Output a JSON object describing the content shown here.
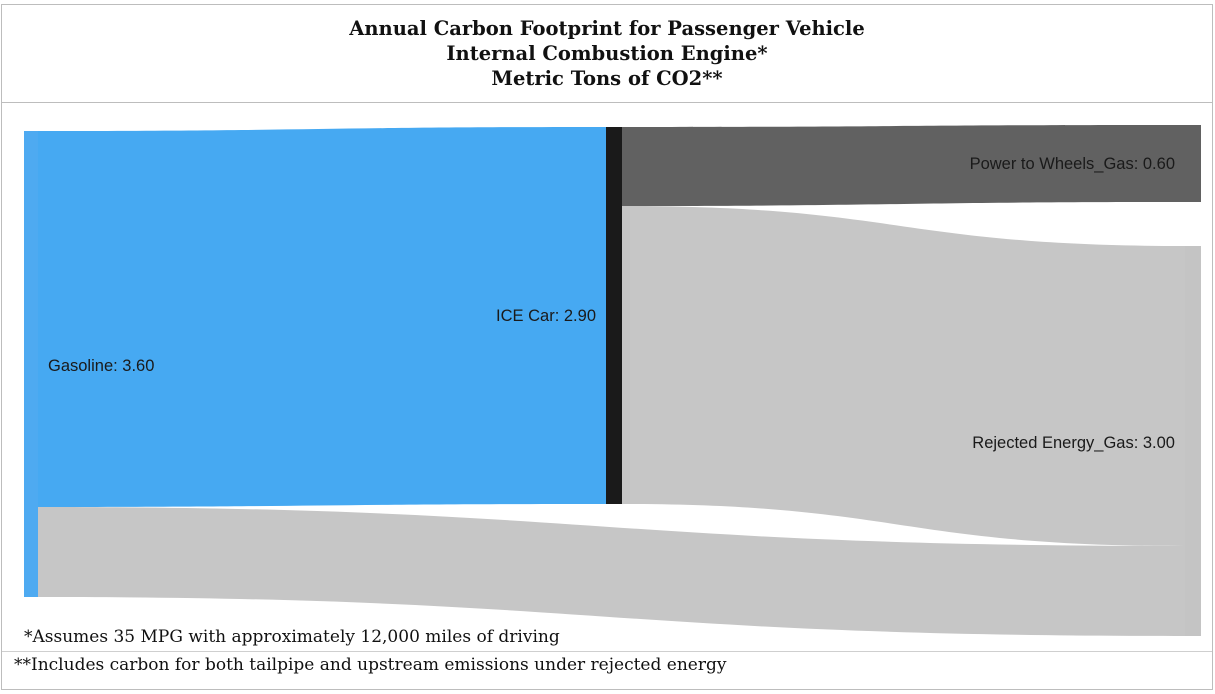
{
  "title": {
    "line1": "Annual Carbon Footprint for Passenger Vehicle",
    "line2": "Internal Combustion Engine*",
    "line3": "Metric Tons of CO2**"
  },
  "sankey": {
    "nodes": [
      {
        "id": "gasoline",
        "label": "Gasoline: 3.60",
        "value": 3.6,
        "color": "#4eaaf1"
      },
      {
        "id": "ice_car",
        "label": "ICE Car: 2.90",
        "value": 2.9,
        "color": "#1a1a1a"
      },
      {
        "id": "power_to_wheels",
        "label": "Power to Wheels_Gas: 0.60",
        "value": 0.6,
        "color": "#616161"
      },
      {
        "id": "rejected_energy",
        "label": "Rejected Energy_Gas: 3.00",
        "value": 3.0,
        "color": "#c4c4c4"
      }
    ],
    "links": [
      {
        "source": "gasoline",
        "target": "ice_car",
        "color": "#46a9f2"
      },
      {
        "source": "gasoline",
        "target": "rejected_energy",
        "color": "#c6c6c6"
      },
      {
        "source": "ice_car",
        "target": "power_to_wheels",
        "color": "#616161"
      },
      {
        "source": "ice_car",
        "target": "rejected_energy",
        "color": "#c6c6c6"
      }
    ]
  },
  "footnotes": {
    "note1": "*Assumes 35 MPG with approximately 12,000 miles of driving",
    "note2": "**Includes carbon for both tailpipe and upstream emissions under rejected energy"
  }
}
